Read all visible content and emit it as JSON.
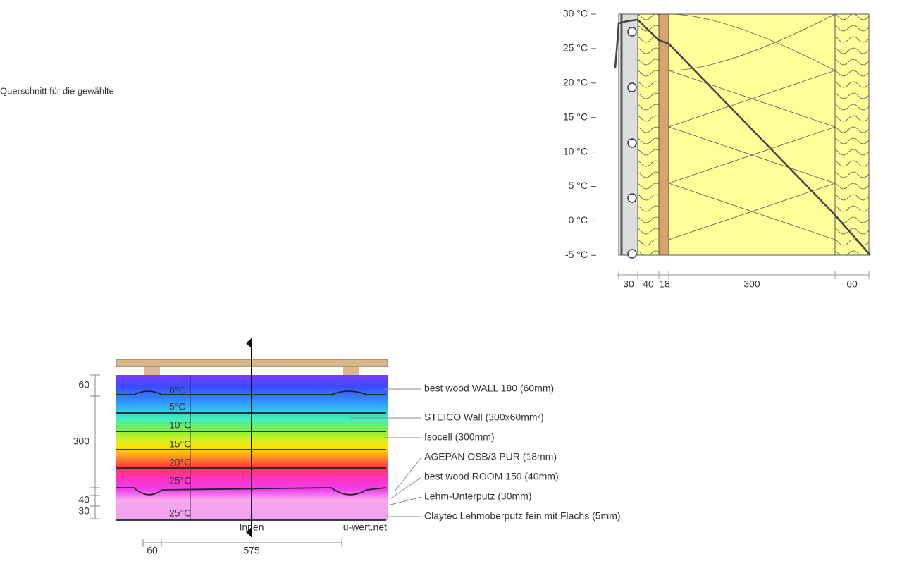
{
  "intro_text": "Querschnitt für die gewählte",
  "temperature_chart": {
    "y_labels": [
      "30 °C",
      "25 °C",
      "20 °C",
      "15 °C",
      "10 °C",
      "5 °C",
      "0 °C",
      "-5 °C"
    ],
    "layer_widths": [
      "30",
      "40",
      "18",
      "300",
      "60"
    ]
  },
  "cross_section": {
    "dimensions_left": [
      "60",
      "300",
      "40",
      "30"
    ],
    "isotherms": [
      "0°C",
      "5°C",
      "10°C",
      "15°C",
      "20°C",
      "25°C",
      "25°C"
    ],
    "side_label": "Innen",
    "watermark": "u-wert.net",
    "dimensions_bottom": [
      "60",
      "575"
    ],
    "layers": [
      "best wood WALL 180 (60mm)",
      "STEICO  Wall (300x60mm²)",
      "Isocell (300mm)",
      "AGEPAN OSB/3 PUR (18mm)",
      "best wood ROOM 150 (40mm)",
      "Lehm-Unterputz (30mm)",
      "Claytec Lehmoberputz fein mit Flachs (5mm)"
    ]
  }
}
